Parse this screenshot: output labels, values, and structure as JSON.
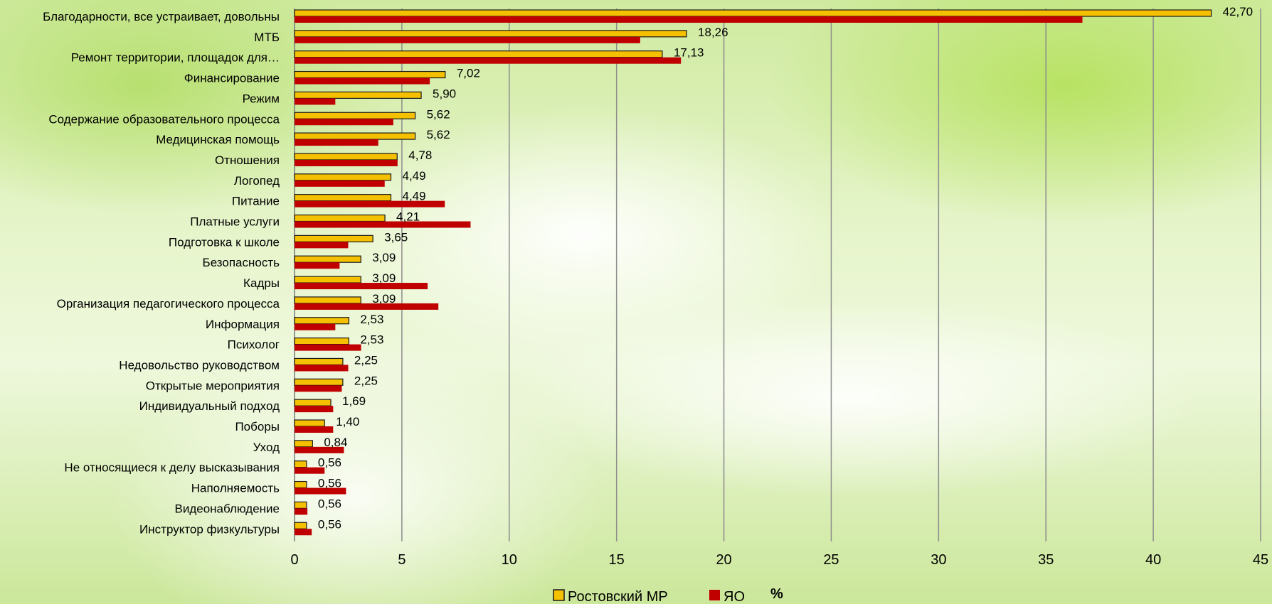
{
  "colors": {
    "series_1": "#F5C000",
    "series_1_border": "#1a1a1a",
    "series_2": "#C00000",
    "grid": "#8c8c8c"
  },
  "chart_data": {
    "type": "bar",
    "orientation": "horizontal",
    "categories": [
      "Благодарности, все устраивает, довольны",
      "МТБ",
      "Ремонт территории, площадок для…",
      "Финансирование",
      "Режим",
      "Содержание образовательного процесса",
      "Медицинская помощь",
      "Отношения",
      "Логопед",
      "Питание",
      "Платные услуги",
      "Подготовка к школе",
      "Безопасность",
      "Кадры",
      "Организация педагогического процесса",
      "Информация",
      "Психолог",
      "Недовольство руководством",
      "Открытые мероприятия",
      "Индивидуальный подход",
      "Поборы",
      "Уход",
      "Не относящиеся к делу высказывания",
      "Наполняемость",
      "Видеонаблюдение",
      "Инструктор  физкультуры"
    ],
    "series": [
      {
        "name": "Ростовский МР",
        "values": [
          42.7,
          18.26,
          17.13,
          7.02,
          5.9,
          5.62,
          5.62,
          4.78,
          4.49,
          4.49,
          4.21,
          3.65,
          3.09,
          3.09,
          3.09,
          2.53,
          2.53,
          2.25,
          2.25,
          1.69,
          1.4,
          0.84,
          0.56,
          0.56,
          0.56,
          0.56
        ],
        "labels": [
          "42,70",
          "18,26",
          "17,13",
          "7,02",
          "5,90",
          "5,62",
          "5,62",
          "4,78",
          "4,49",
          "4,49",
          "4,21",
          "3,65",
          "3,09",
          "3,09",
          "3,09",
          "2,53",
          "2,53",
          "2,25",
          "2,25",
          "1,69",
          "1,40",
          "0,84",
          "0,56",
          "0,56",
          "0,56",
          "0,56"
        ]
      },
      {
        "name": "ЯО",
        "values": [
          36.7,
          16.1,
          18.0,
          6.3,
          1.9,
          4.6,
          3.9,
          4.8,
          4.2,
          7.0,
          8.2,
          2.5,
          2.1,
          6.2,
          6.7,
          1.9,
          3.1,
          2.5,
          2.2,
          1.8,
          1.8,
          2.3,
          1.4,
          2.4,
          0.6,
          0.8
        ]
      }
    ],
    "xlim": [
      0,
      45
    ],
    "xticks": [
      "0",
      "5",
      "10",
      "15",
      "20",
      "25",
      "30",
      "35",
      "40",
      "45"
    ],
    "xlabel": "%",
    "grid": true,
    "legend_position": "bottom"
  }
}
